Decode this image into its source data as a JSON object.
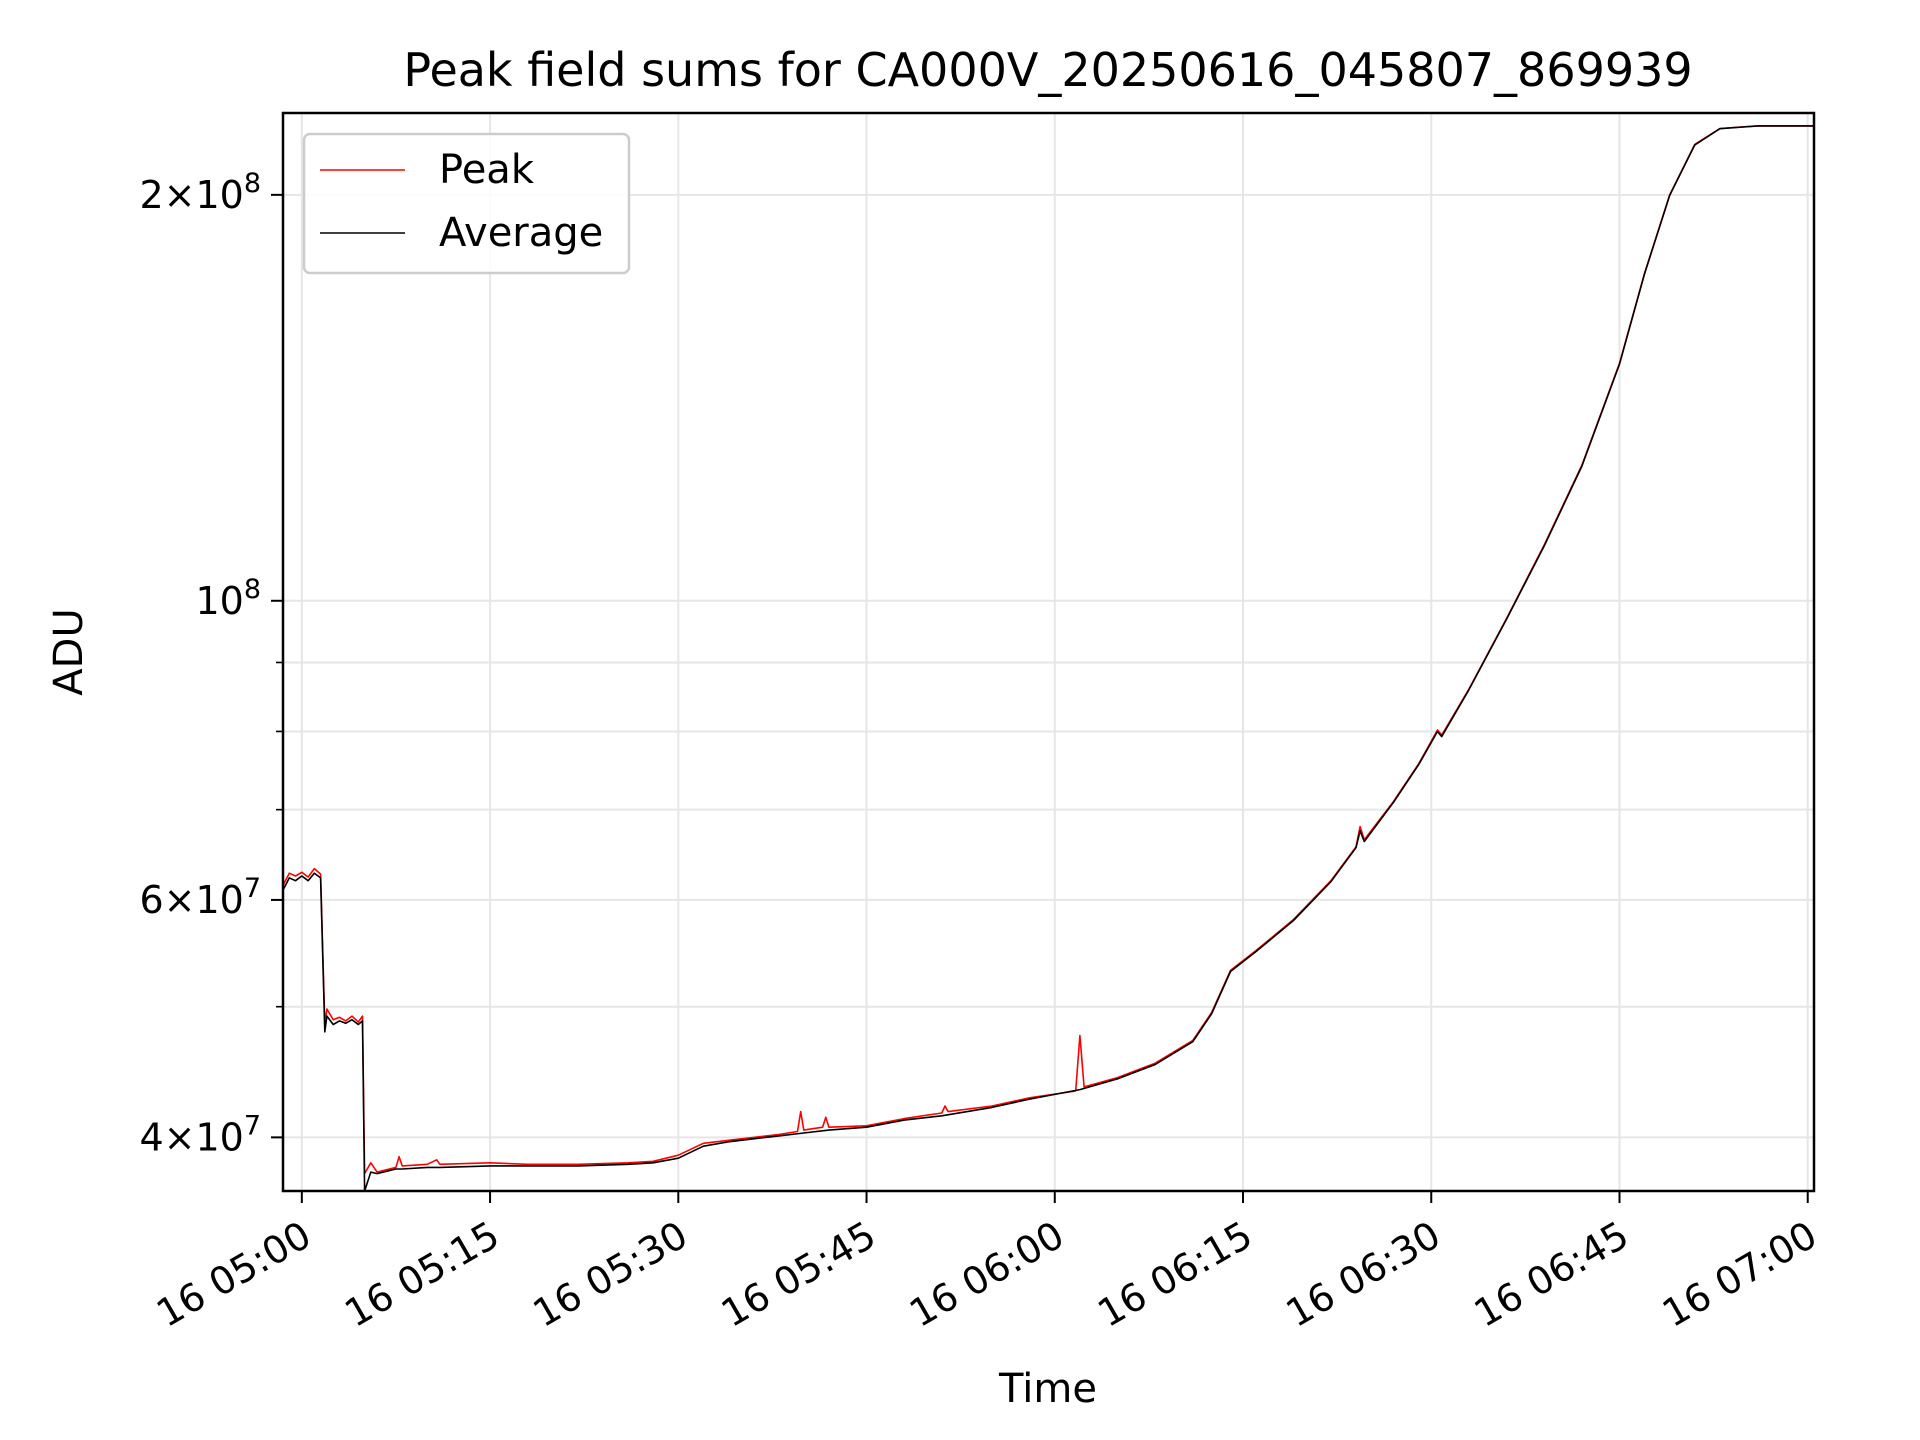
{
  "chart_data": {
    "type": "line",
    "title": "Peak field sums for CA000V_20250616_045807_869939",
    "xlabel": "Time",
    "ylabel": "ADU",
    "yscale": "log",
    "ylim": [
      36500000,
      230000000
    ],
    "xlim": [
      "2025-06-16 04:58:30",
      "2025-06-16 07:00:30"
    ],
    "grid": true,
    "legend_position": "upper left",
    "x_ticks": [
      {
        "value": "2025-06-16 05:00",
        "label": "16 05:00"
      },
      {
        "value": "2025-06-16 05:15",
        "label": "16 05:15"
      },
      {
        "value": "2025-06-16 05:30",
        "label": "16 05:30"
      },
      {
        "value": "2025-06-16 05:45",
        "label": "16 05:45"
      },
      {
        "value": "2025-06-16 06:00",
        "label": "16 06:00"
      },
      {
        "value": "2025-06-16 06:15",
        "label": "16 06:15"
      },
      {
        "value": "2025-06-16 06:30",
        "label": "16 06:30"
      },
      {
        "value": "2025-06-16 06:45",
        "label": "16 06:45"
      },
      {
        "value": "2025-06-16 07:00",
        "label": "16 07:00"
      }
    ],
    "y_major_ticks": [
      {
        "value": 40000000,
        "mantissa": "4",
        "exponent": "7"
      },
      {
        "value": 60000000,
        "mantissa": "6",
        "exponent": "7"
      },
      {
        "value": 100000000,
        "mantissa": "",
        "exponent": "8"
      },
      {
        "value": 200000000,
        "mantissa": "2",
        "exponent": "8"
      }
    ],
    "y_minor_ticks": [
      50000000,
      70000000,
      80000000,
      90000000
    ],
    "series": [
      {
        "name": "Peak",
        "color": "#ff0000",
        "points": [
          [
            "2025-06-16 04:58:30",
            61500000
          ],
          [
            "2025-06-16 04:59:00",
            62800000
          ],
          [
            "2025-06-16 04:59:30",
            62500000
          ],
          [
            "2025-06-16 05:00:00",
            62900000
          ],
          [
            "2025-06-16 05:00:30",
            62400000
          ],
          [
            "2025-06-16 05:01:00",
            63300000
          ],
          [
            "2025-06-16 05:01:30",
            62700000
          ],
          [
            "2025-06-16 05:01:50",
            48500000
          ],
          [
            "2025-06-16 05:02:00",
            49800000
          ],
          [
            "2025-06-16 05:02:30",
            48900000
          ],
          [
            "2025-06-16 05:03:00",
            49100000
          ],
          [
            "2025-06-16 05:03:30",
            48800000
          ],
          [
            "2025-06-16 05:04:00",
            49200000
          ],
          [
            "2025-06-16 05:04:30",
            48700000
          ],
          [
            "2025-06-16 05:04:50",
            49200000
          ],
          [
            "2025-06-16 05:05:00",
            37600000
          ],
          [
            "2025-06-16 05:05:30",
            38300000
          ],
          [
            "2025-06-16 05:06:00",
            37700000
          ],
          [
            "2025-06-16 05:07:30",
            38000000
          ],
          [
            "2025-06-16 05:07:45",
            38700000
          ],
          [
            "2025-06-16 05:08:00",
            38100000
          ],
          [
            "2025-06-16 05:10:00",
            38200000
          ],
          [
            "2025-06-16 05:10:45",
            38500000
          ],
          [
            "2025-06-16 05:11:00",
            38200000
          ],
          [
            "2025-06-16 05:15:00",
            38300000
          ],
          [
            "2025-06-16 05:18:00",
            38200000
          ],
          [
            "2025-06-16 05:22:00",
            38200000
          ],
          [
            "2025-06-16 05:26:00",
            38300000
          ],
          [
            "2025-06-16 05:28:00",
            38400000
          ],
          [
            "2025-06-16 05:30:00",
            38800000
          ],
          [
            "2025-06-16 05:32:00",
            39600000
          ],
          [
            "2025-06-16 05:34:00",
            39800000
          ],
          [
            "2025-06-16 05:36:00",
            40000000
          ],
          [
            "2025-06-16 05:38:00",
            40200000
          ],
          [
            "2025-06-16 05:39:30",
            40400000
          ],
          [
            "2025-06-16 05:39:45",
            41800000
          ],
          [
            "2025-06-16 05:40:00",
            40500000
          ],
          [
            "2025-06-16 05:41:30",
            40700000
          ],
          [
            "2025-06-16 05:41:45",
            41400000
          ],
          [
            "2025-06-16 05:42:00",
            40700000
          ],
          [
            "2025-06-16 05:45:00",
            40800000
          ],
          [
            "2025-06-16 05:48:00",
            41300000
          ],
          [
            "2025-06-16 05:51:00",
            41700000
          ],
          [
            "2025-06-16 05:51:15",
            42200000
          ],
          [
            "2025-06-16 05:51:30",
            41800000
          ],
          [
            "2025-06-16 05:55:00",
            42200000
          ],
          [
            "2025-06-16 05:58:00",
            42800000
          ],
          [
            "2025-06-16 06:01:40",
            43300000
          ],
          [
            "2025-06-16 06:02:00",
            47600000
          ],
          [
            "2025-06-16 06:02:20",
            43600000
          ],
          [
            "2025-06-16 06:05:00",
            44300000
          ],
          [
            "2025-06-16 06:08:00",
            45400000
          ],
          [
            "2025-06-16 06:11:00",
            47200000
          ],
          [
            "2025-06-16 06:12:30",
            49500000
          ],
          [
            "2025-06-16 06:14:00",
            53200000
          ],
          [
            "2025-06-16 06:16:00",
            55000000
          ],
          [
            "2025-06-16 06:19:00",
            58000000
          ],
          [
            "2025-06-16 06:22:00",
            62000000
          ],
          [
            "2025-06-16 06:24:00",
            65700000
          ],
          [
            "2025-06-16 06:24:20",
            68000000
          ],
          [
            "2025-06-16 06:24:40",
            66500000
          ],
          [
            "2025-06-16 06:27:00",
            71000000
          ],
          [
            "2025-06-16 06:29:00",
            75700000
          ],
          [
            "2025-06-16 06:30:30",
            80200000
          ],
          [
            "2025-06-16 06:30:50",
            79500000
          ],
          [
            "2025-06-16 06:33:00",
            86000000
          ],
          [
            "2025-06-16 06:36:00",
            97000000
          ],
          [
            "2025-06-16 06:39:00",
            110000000
          ],
          [
            "2025-06-16 06:42:00",
            126000000
          ],
          [
            "2025-06-16 06:45:00",
            150000000
          ],
          [
            "2025-06-16 06:47:00",
            175000000
          ],
          [
            "2025-06-16 06:49:00",
            200000000
          ],
          [
            "2025-06-16 06:51:00",
            218000000
          ],
          [
            "2025-06-16 06:53:00",
            224000000
          ],
          [
            "2025-06-16 06:56:00",
            225000000
          ],
          [
            "2025-06-16 07:00:30",
            225000000
          ]
        ]
      },
      {
        "name": "Average",
        "color": "#000000",
        "points": [
          [
            "2025-06-16 04:58:30",
            61000000
          ],
          [
            "2025-06-16 04:59:00",
            62300000
          ],
          [
            "2025-06-16 04:59:30",
            62000000
          ],
          [
            "2025-06-16 05:00:00",
            62500000
          ],
          [
            "2025-06-16 05:00:30",
            62000000
          ],
          [
            "2025-06-16 05:01:00",
            62800000
          ],
          [
            "2025-06-16 05:01:30",
            62300000
          ],
          [
            "2025-06-16 05:01:50",
            47900000
          ],
          [
            "2025-06-16 05:02:00",
            49200000
          ],
          [
            "2025-06-16 05:02:30",
            48500000
          ],
          [
            "2025-06-16 05:03:00",
            48800000
          ],
          [
            "2025-06-16 05:03:30",
            48600000
          ],
          [
            "2025-06-16 05:04:00",
            48900000
          ],
          [
            "2025-06-16 05:04:30",
            48500000
          ],
          [
            "2025-06-16 05:04:50",
            48800000
          ],
          [
            "2025-06-16 05:05:00",
            36500000
          ],
          [
            "2025-06-16 05:05:30",
            37700000
          ],
          [
            "2025-06-16 05:06:00",
            37600000
          ],
          [
            "2025-06-16 05:07:30",
            37900000
          ],
          [
            "2025-06-16 05:08:00",
            37900000
          ],
          [
            "2025-06-16 05:10:00",
            38000000
          ],
          [
            "2025-06-16 05:11:00",
            38000000
          ],
          [
            "2025-06-16 05:15:00",
            38100000
          ],
          [
            "2025-06-16 05:18:00",
            38100000
          ],
          [
            "2025-06-16 05:22:00",
            38100000
          ],
          [
            "2025-06-16 05:26:00",
            38200000
          ],
          [
            "2025-06-16 05:28:00",
            38300000
          ],
          [
            "2025-06-16 05:30:00",
            38600000
          ],
          [
            "2025-06-16 05:32:00",
            39400000
          ],
          [
            "2025-06-16 05:34:00",
            39700000
          ],
          [
            "2025-06-16 05:36:00",
            39900000
          ],
          [
            "2025-06-16 05:38:00",
            40100000
          ],
          [
            "2025-06-16 05:40:00",
            40300000
          ],
          [
            "2025-06-16 05:42:00",
            40500000
          ],
          [
            "2025-06-16 05:45:00",
            40700000
          ],
          [
            "2025-06-16 05:48:00",
            41200000
          ],
          [
            "2025-06-16 05:51:00",
            41500000
          ],
          [
            "2025-06-16 05:55:00",
            42100000
          ],
          [
            "2025-06-16 05:58:00",
            42700000
          ],
          [
            "2025-06-16 06:02:00",
            43400000
          ],
          [
            "2025-06-16 06:05:00",
            44200000
          ],
          [
            "2025-06-16 06:08:00",
            45300000
          ],
          [
            "2025-06-16 06:11:00",
            47100000
          ],
          [
            "2025-06-16 06:12:30",
            49400000
          ],
          [
            "2025-06-16 06:14:00",
            53100000
          ],
          [
            "2025-06-16 06:16:00",
            54900000
          ],
          [
            "2025-06-16 06:19:00",
            57900000
          ],
          [
            "2025-06-16 06:22:00",
            61900000
          ],
          [
            "2025-06-16 06:24:00",
            65600000
          ],
          [
            "2025-06-16 06:24:20",
            67500000
          ],
          [
            "2025-06-16 06:24:40",
            66300000
          ],
          [
            "2025-06-16 06:27:00",
            70900000
          ],
          [
            "2025-06-16 06:29:00",
            75600000
          ],
          [
            "2025-06-16 06:30:30",
            80000000
          ],
          [
            "2025-06-16 06:30:50",
            79300000
          ],
          [
            "2025-06-16 06:33:00",
            85900000
          ],
          [
            "2025-06-16 06:36:00",
            96900000
          ],
          [
            "2025-06-16 06:39:00",
            109800000
          ],
          [
            "2025-06-16 06:42:00",
            125800000
          ],
          [
            "2025-06-16 06:45:00",
            149800000
          ],
          [
            "2025-06-16 06:47:00",
            174800000
          ],
          [
            "2025-06-16 06:49:00",
            199800000
          ],
          [
            "2025-06-16 06:51:00",
            217800000
          ],
          [
            "2025-06-16 06:53:00",
            223900000
          ],
          [
            "2025-06-16 06:56:00",
            225000000
          ],
          [
            "2025-06-16 07:00:30",
            225000000
          ]
        ]
      }
    ]
  }
}
